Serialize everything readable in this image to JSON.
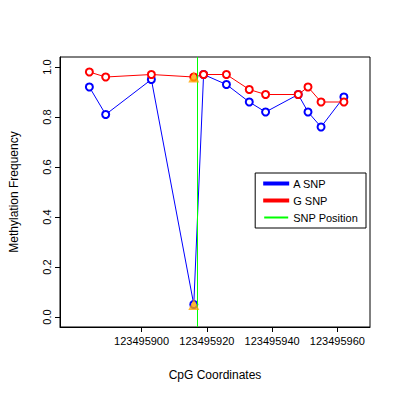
{
  "chart_data": {
    "type": "line",
    "x_label": "CpG Coordinates",
    "y_label": "Methylation Frequency",
    "x": [
      123495884,
      123495889,
      123495903,
      123495916,
      123495919,
      123495926,
      123495933,
      123495938,
      123495948,
      123495951,
      123495955,
      123495962
    ],
    "series": [
      {
        "name": "A SNP",
        "color": "#0000ff",
        "marker": "circle",
        "values": [
          0.92,
          0.81,
          0.95,
          0.05,
          0.97,
          0.93,
          0.86,
          0.82,
          0.89,
          0.82,
          0.76,
          0.88
        ]
      },
      {
        "name": "G SNP",
        "color": "#ff0000",
        "marker": "circle",
        "values": [
          0.98,
          0.96,
          0.97,
          0.96,
          0.97,
          0.97,
          0.91,
          0.89,
          0.89,
          0.92,
          0.86,
          0.86
        ]
      },
      {
        "name": "SNP Position",
        "color": "#00ff00",
        "type": "vline",
        "x": 123495917
      }
    ],
    "highlight": {
      "x": [
        123495916,
        123495916
      ],
      "y": [
        0.05,
        0.96
      ],
      "marker": "triangle",
      "color": "#ffa500"
    },
    "xlim": [
      123495875,
      123495970
    ],
    "xticks": [
      123495900,
      123495920,
      123495940,
      123495960
    ],
    "ylim": [
      -0.04,
      1.04
    ],
    "yticks": [
      {
        "value": 0,
        "label": "0.0"
      },
      0.2,
      0.4,
      0.6,
      0.8,
      {
        "value": 1,
        "label": "1.0"
      }
    ],
    "legend": "right",
    "grid": false
  }
}
